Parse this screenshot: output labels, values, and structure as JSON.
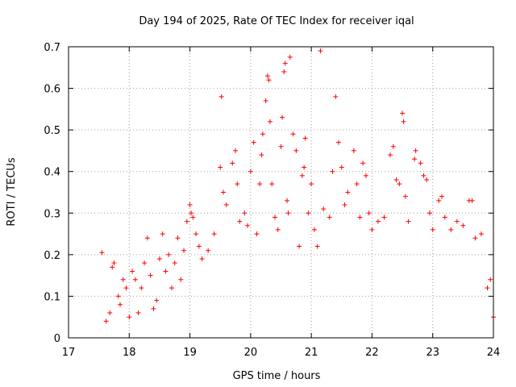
{
  "chart_data": {
    "type": "scatter",
    "title": "Day 194 of 2025, Rate Of TEC Index for receiver iqal",
    "xlabel": "GPS time / hours",
    "ylabel": "ROTI / TECUs",
    "xlim": [
      17,
      24
    ],
    "ylim": [
      0,
      0.7
    ],
    "xticks": [
      "17",
      "18",
      "19",
      "20",
      "21",
      "22",
      "23",
      "24"
    ],
    "yticks": [
      "0",
      "0.1",
      "0.2",
      "0.3",
      "0.4",
      "0.5",
      "0.6",
      "0.7"
    ],
    "grid": true,
    "marker": "+",
    "color": "#ff0000",
    "series": [
      {
        "points": [
          [
            17.55,
            0.205
          ],
          [
            17.62,
            0.04
          ],
          [
            17.68,
            0.06
          ],
          [
            17.72,
            0.17
          ],
          [
            17.75,
            0.18
          ],
          [
            17.82,
            0.1
          ],
          [
            17.85,
            0.08
          ],
          [
            17.9,
            0.14
          ],
          [
            17.95,
            0.12
          ],
          [
            18.0,
            0.05
          ],
          [
            18.05,
            0.16
          ],
          [
            18.1,
            0.14
          ],
          [
            18.15,
            0.06
          ],
          [
            18.2,
            0.12
          ],
          [
            18.25,
            0.18
          ],
          [
            18.3,
            0.24
          ],
          [
            18.35,
            0.15
          ],
          [
            18.4,
            0.07
          ],
          [
            18.45,
            0.09
          ],
          [
            18.5,
            0.19
          ],
          [
            18.55,
            0.25
          ],
          [
            18.6,
            0.16
          ],
          [
            18.65,
            0.2
          ],
          [
            18.7,
            0.12
          ],
          [
            18.75,
            0.18
          ],
          [
            18.8,
            0.24
          ],
          [
            18.85,
            0.14
          ],
          [
            18.9,
            0.21
          ],
          [
            18.95,
            0.28
          ],
          [
            19.0,
            0.32
          ],
          [
            19.02,
            0.3
          ],
          [
            19.05,
            0.29
          ],
          [
            19.1,
            0.25
          ],
          [
            19.15,
            0.22
          ],
          [
            19.2,
            0.19
          ],
          [
            19.3,
            0.21
          ],
          [
            19.4,
            0.25
          ],
          [
            19.5,
            0.41
          ],
          [
            19.52,
            0.58
          ],
          [
            19.55,
            0.35
          ],
          [
            19.6,
            0.32
          ],
          [
            19.7,
            0.42
          ],
          [
            19.75,
            0.45
          ],
          [
            19.78,
            0.37
          ],
          [
            19.82,
            0.28
          ],
          [
            19.9,
            0.3
          ],
          [
            19.95,
            0.27
          ],
          [
            20.0,
            0.4
          ],
          [
            20.05,
            0.47
          ],
          [
            20.1,
            0.25
          ],
          [
            20.15,
            0.37
          ],
          [
            20.18,
            0.44
          ],
          [
            20.2,
            0.49
          ],
          [
            20.25,
            0.57
          ],
          [
            20.28,
            0.63
          ],
          [
            20.3,
            0.62
          ],
          [
            20.32,
            0.52
          ],
          [
            20.35,
            0.37
          ],
          [
            20.4,
            0.29
          ],
          [
            20.45,
            0.26
          ],
          [
            20.5,
            0.46
          ],
          [
            20.52,
            0.53
          ],
          [
            20.55,
            0.64
          ],
          [
            20.57,
            0.66
          ],
          [
            20.6,
            0.33
          ],
          [
            20.62,
            0.3
          ],
          [
            20.65,
            0.675
          ],
          [
            20.7,
            0.49
          ],
          [
            20.75,
            0.45
          ],
          [
            20.8,
            0.22
          ],
          [
            20.85,
            0.39
          ],
          [
            20.88,
            0.41
          ],
          [
            20.9,
            0.48
          ],
          [
            20.95,
            0.3
          ],
          [
            21.0,
            0.37
          ],
          [
            21.05,
            0.26
          ],
          [
            21.1,
            0.22
          ],
          [
            21.15,
            0.69
          ],
          [
            21.2,
            0.31
          ],
          [
            21.3,
            0.29
          ],
          [
            21.35,
            0.4
          ],
          [
            21.4,
            0.58
          ],
          [
            21.45,
            0.47
          ],
          [
            21.5,
            0.41
          ],
          [
            21.55,
            0.32
          ],
          [
            21.6,
            0.35
          ],
          [
            21.7,
            0.45
          ],
          [
            21.75,
            0.37
          ],
          [
            21.8,
            0.29
          ],
          [
            21.85,
            0.42
          ],
          [
            21.9,
            0.39
          ],
          [
            21.95,
            0.3
          ],
          [
            22.0,
            0.26
          ],
          [
            22.1,
            0.28
          ],
          [
            22.2,
            0.29
          ],
          [
            22.3,
            0.44
          ],
          [
            22.35,
            0.46
          ],
          [
            22.4,
            0.38
          ],
          [
            22.45,
            0.37
          ],
          [
            22.5,
            0.54
          ],
          [
            22.52,
            0.52
          ],
          [
            22.55,
            0.34
          ],
          [
            22.6,
            0.28
          ],
          [
            22.7,
            0.43
          ],
          [
            22.72,
            0.45
          ],
          [
            22.8,
            0.42
          ],
          [
            22.85,
            0.39
          ],
          [
            22.9,
            0.38
          ],
          [
            22.95,
            0.3
          ],
          [
            23.0,
            0.26
          ],
          [
            23.1,
            0.33
          ],
          [
            23.15,
            0.34
          ],
          [
            23.2,
            0.29
          ],
          [
            23.3,
            0.26
          ],
          [
            23.4,
            0.28
          ],
          [
            23.5,
            0.27
          ],
          [
            23.6,
            0.33
          ],
          [
            23.65,
            0.33
          ],
          [
            23.7,
            0.24
          ],
          [
            23.8,
            0.25
          ],
          [
            23.9,
            0.12
          ],
          [
            23.95,
            0.14
          ],
          [
            24.0,
            0.05
          ]
        ]
      }
    ]
  }
}
